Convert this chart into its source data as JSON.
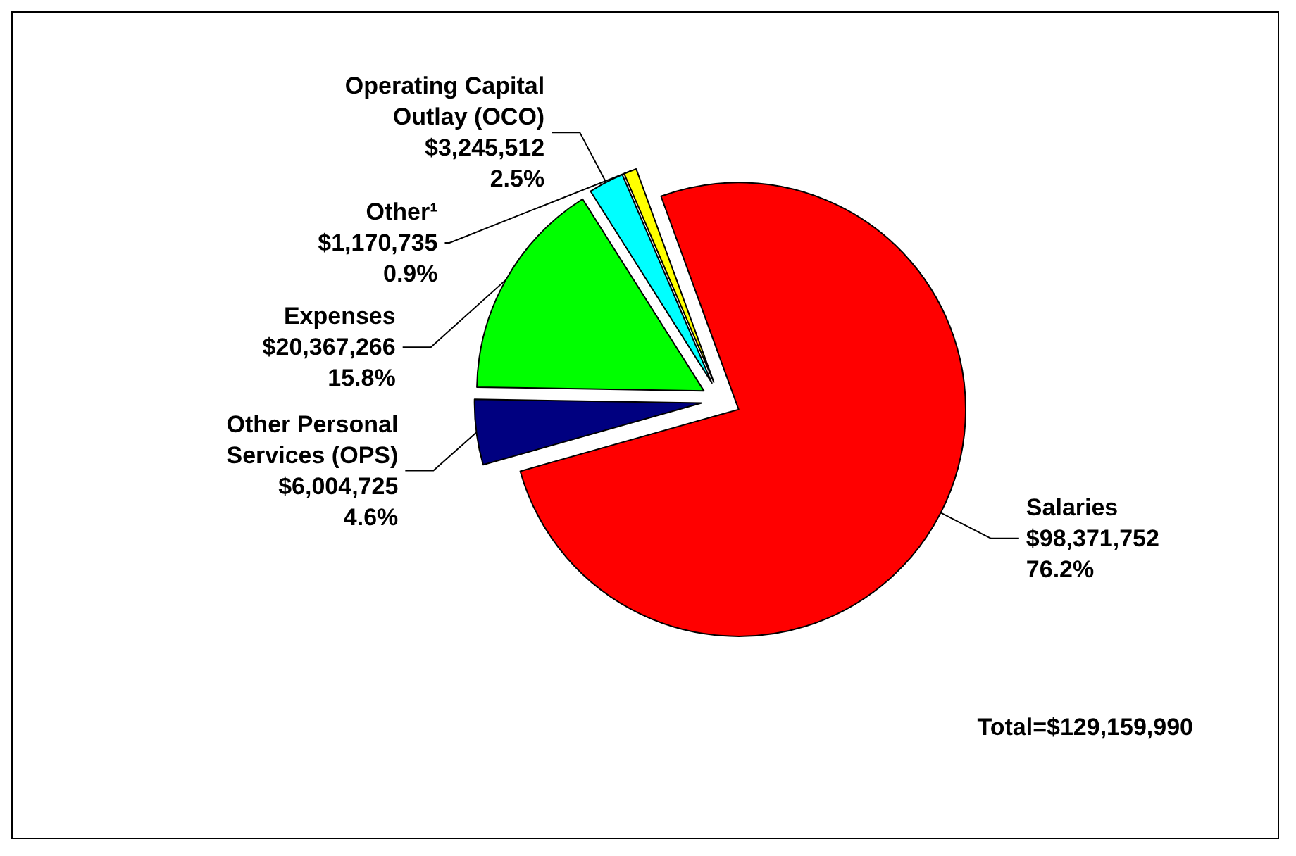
{
  "chart_data": {
    "type": "pie",
    "categories": [
      "Salaries",
      "Other Personal Services (OPS)",
      "Expenses",
      "Operating Capital Outlay (OCO)",
      "Other¹"
    ],
    "values": [
      98371752,
      6004725,
      20367266,
      3245512,
      1170735
    ],
    "value_labels": [
      "$98,371,752\n76.2%",
      "$6,004,725\n4.6%",
      "$20,367,266\n15.8%",
      "$3,245,512\n2.5%",
      "$1,170,735\n0.9%"
    ],
    "colors": [
      "#ff0000",
      "#000080",
      "#00ff00",
      "#00ffff",
      "#ffff00"
    ],
    "annotations": [
      "Total=$129,159,990"
    ],
    "legend": false
  }
}
